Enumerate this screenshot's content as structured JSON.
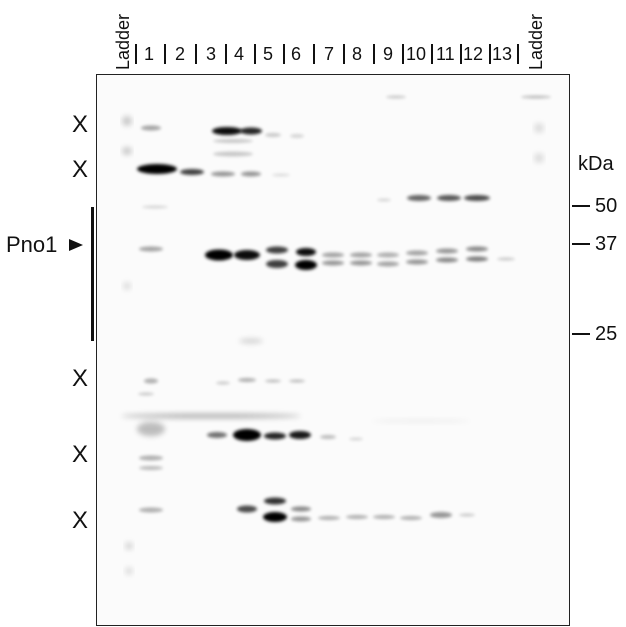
{
  "lane_header": {
    "ladder_left": "Ladder",
    "ladder_right": "Ladder",
    "lanes": [
      "1",
      "2",
      "3",
      "4",
      "5",
      "6",
      "7",
      "8",
      "9",
      "10",
      "11",
      "12",
      "13"
    ]
  },
  "markers": {
    "unit": "kDa",
    "values": [
      "50",
      "37",
      "25"
    ]
  },
  "band_labels": {
    "protein": "Pno1",
    "cross": [
      "X",
      "X",
      "X",
      "X",
      "X"
    ]
  }
}
